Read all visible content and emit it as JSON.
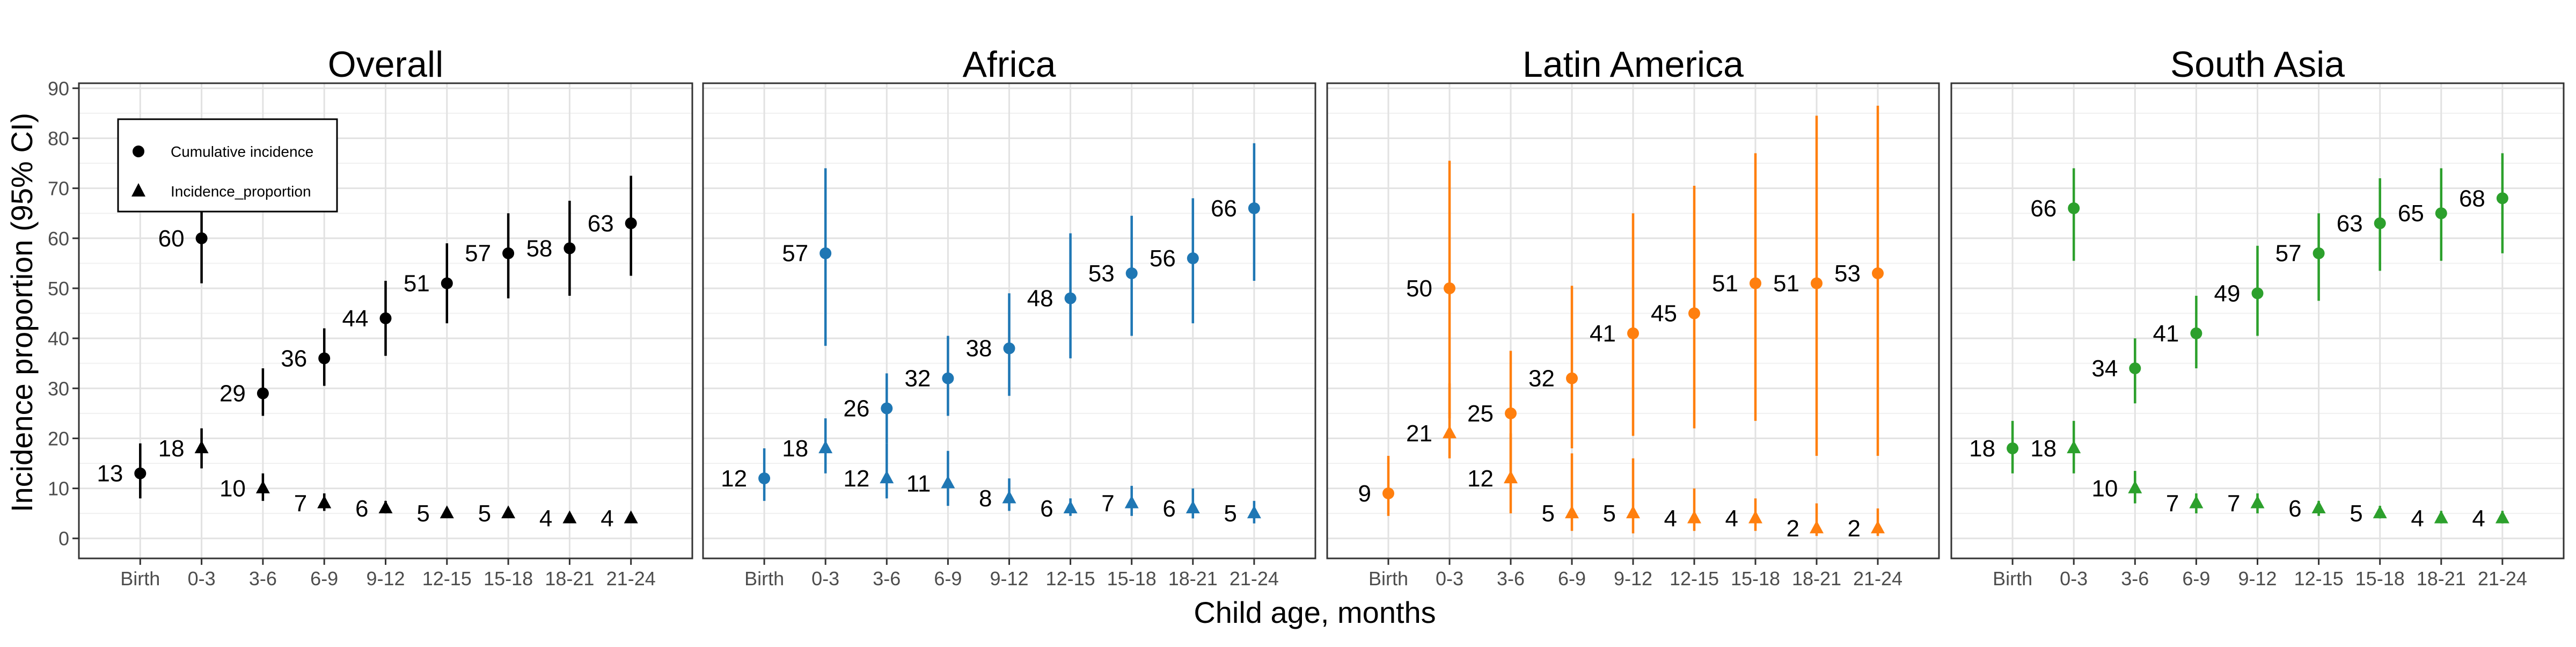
{
  "figure": {
    "ylabel": "Incidence proportion (95% CI)",
    "xlabel": "Child age, months",
    "legend": {
      "placement": "top-left",
      "entries": [
        {
          "label": "Cumulative incidence",
          "shape": "circle"
        },
        {
          "label": "Incidence_proportion",
          "shape": "triangle"
        }
      ]
    }
  },
  "chart_data": [
    {
      "type": "scatter",
      "title": "Overall",
      "color": "#000000",
      "categories": [
        "Birth",
        "0-3",
        "3-6",
        "6-9",
        "9-12",
        "12-15",
        "15-18",
        "18-21",
        "21-24"
      ],
      "ylim": [
        -4,
        91
      ],
      "yticks": [
        0,
        10,
        20,
        30,
        40,
        50,
        60,
        70,
        80,
        90
      ],
      "grid": true,
      "series": [
        {
          "name": "Cumulative incidence",
          "shape": "circle",
          "points": [
            {
              "x": "Birth",
              "y": 13,
              "lo": 8,
              "hi": 19,
              "label": "13"
            },
            {
              "x": "0-3",
              "y": 60,
              "lo": 51,
              "hi": 69,
              "label": "60"
            },
            {
              "x": "3-6",
              "y": 29,
              "lo": 24.5,
              "hi": 34,
              "label": "29"
            },
            {
              "x": "6-9",
              "y": 36,
              "lo": 30.5,
              "hi": 42,
              "label": "36"
            },
            {
              "x": "9-12",
              "y": 44,
              "lo": 36.5,
              "hi": 51.5,
              "label": "44"
            },
            {
              "x": "12-15",
              "y": 51,
              "lo": 43,
              "hi": 59,
              "label": "51"
            },
            {
              "x": "15-18",
              "y": 57,
              "lo": 48,
              "hi": 65,
              "label": "57"
            },
            {
              "x": "18-21",
              "y": 58,
              "lo": 48.5,
              "hi": 67.5,
              "label": "58"
            },
            {
              "x": "21-24",
              "y": 63,
              "lo": 52.5,
              "hi": 72.5,
              "label": "63"
            }
          ]
        },
        {
          "name": "Incidence_proportion",
          "shape": "triangle",
          "points": [
            {
              "x": "0-3",
              "y": 18,
              "lo": 14,
              "hi": 22,
              "label": "18"
            },
            {
              "x": "3-6",
              "y": 10,
              "lo": 7.5,
              "hi": 13,
              "label": "10"
            },
            {
              "x": "6-9",
              "y": 7,
              "lo": 5.5,
              "hi": 9,
              "label": "7"
            },
            {
              "x": "9-12",
              "y": 6,
              "lo": 5,
              "hi": 7.5,
              "label": "6"
            },
            {
              "x": "12-15",
              "y": 5,
              "lo": 4.5,
              "hi": 6,
              "label": "5"
            },
            {
              "x": "15-18",
              "y": 5,
              "lo": 4.5,
              "hi": 6,
              "label": "5"
            },
            {
              "x": "18-21",
              "y": 4,
              "lo": 3.5,
              "hi": 5,
              "label": "4"
            },
            {
              "x": "21-24",
              "y": 4,
              "lo": 3.5,
              "hi": 5,
              "label": "4"
            }
          ]
        }
      ]
    },
    {
      "type": "scatter",
      "title": "Africa",
      "color": "#1F77B4",
      "categories": [
        "Birth",
        "0-3",
        "3-6",
        "6-9",
        "9-12",
        "12-15",
        "15-18",
        "18-21",
        "21-24"
      ],
      "ylim": [
        -4,
        91
      ],
      "grid": true,
      "series": [
        {
          "name": "Cumulative incidence",
          "shape": "circle",
          "points": [
            {
              "x": "Birth",
              "y": 12,
              "lo": 7.5,
              "hi": 18,
              "label": "12"
            },
            {
              "x": "0-3",
              "y": 57,
              "lo": 38.5,
              "hi": 74,
              "label": "57"
            },
            {
              "x": "3-6",
              "y": 26,
              "lo": 19,
              "hi": 33,
              "label": "26"
            },
            {
              "x": "6-9",
              "y": 32,
              "lo": 24.5,
              "hi": 40.5,
              "label": "32"
            },
            {
              "x": "9-12",
              "y": 38,
              "lo": 28.5,
              "hi": 49,
              "label": "38"
            },
            {
              "x": "12-15",
              "y": 48,
              "lo": 36,
              "hi": 61,
              "label": "48"
            },
            {
              "x": "15-18",
              "y": 53,
              "lo": 40.5,
              "hi": 64.5,
              "label": "53"
            },
            {
              "x": "18-21",
              "y": 56,
              "lo": 43,
              "hi": 68,
              "label": "56"
            },
            {
              "x": "21-24",
              "y": 66,
              "lo": 51.5,
              "hi": 79,
              "label": "66"
            }
          ]
        },
        {
          "name": "Incidence_proportion",
          "shape": "triangle",
          "points": [
            {
              "x": "0-3",
              "y": 18,
              "lo": 13,
              "hi": 24,
              "label": "18"
            },
            {
              "x": "3-6",
              "y": 12,
              "lo": 8,
              "hi": 19,
              "label": "12"
            },
            {
              "x": "6-9",
              "y": 11,
              "lo": 6.5,
              "hi": 17.5,
              "label": "11"
            },
            {
              "x": "9-12",
              "y": 8,
              "lo": 5.5,
              "hi": 12,
              "label": "8"
            },
            {
              "x": "12-15",
              "y": 6,
              "lo": 4.5,
              "hi": 8,
              "label": "6"
            },
            {
              "x": "15-18",
              "y": 7,
              "lo": 4.5,
              "hi": 10.5,
              "label": "7"
            },
            {
              "x": "18-21",
              "y": 6,
              "lo": 4,
              "hi": 10,
              "label": "6"
            },
            {
              "x": "21-24",
              "y": 5,
              "lo": 3,
              "hi": 7.5,
              "label": "5"
            }
          ]
        }
      ]
    },
    {
      "type": "scatter",
      "title": "Latin America",
      "color": "#FF7F0E",
      "categories": [
        "Birth",
        "0-3",
        "3-6",
        "6-9",
        "9-12",
        "12-15",
        "15-18",
        "18-21",
        "21-24"
      ],
      "ylim": [
        -4,
        91
      ],
      "grid": true,
      "series": [
        {
          "name": "Cumulative incidence",
          "shape": "circle",
          "points": [
            {
              "x": "Birth",
              "y": 9,
              "lo": 4.5,
              "hi": 16.5,
              "label": "9"
            },
            {
              "x": "0-3",
              "y": 50,
              "lo": 24,
              "hi": 75.5,
              "label": "50"
            },
            {
              "x": "3-6",
              "y": 25,
              "lo": 12.5,
              "hi": 37.5,
              "label": "25"
            },
            {
              "x": "6-9",
              "y": 32,
              "lo": 18,
              "hi": 50.5,
              "label": "32"
            },
            {
              "x": "9-12",
              "y": 41,
              "lo": 20.5,
              "hi": 65,
              "label": "41"
            },
            {
              "x": "12-15",
              "y": 45,
              "lo": 22,
              "hi": 70.5,
              "label": "45"
            },
            {
              "x": "15-18",
              "y": 51,
              "lo": 23.5,
              "hi": 77,
              "label": "51"
            },
            {
              "x": "18-21",
              "y": 51,
              "lo": 16.5,
              "hi": 84.5,
              "label": "51"
            },
            {
              "x": "21-24",
              "y": 53,
              "lo": 16.5,
              "hi": 86.5,
              "label": "53"
            }
          ]
        },
        {
          "name": "Incidence_proportion",
          "shape": "triangle",
          "points": [
            {
              "x": "0-3",
              "y": 21,
              "lo": 16,
              "hi": 31,
              "label": "21"
            },
            {
              "x": "3-6",
              "y": 12,
              "lo": 5,
              "hi": 21,
              "label": "12"
            },
            {
              "x": "6-9",
              "y": 5,
              "lo": 1.5,
              "hi": 17,
              "label": "5"
            },
            {
              "x": "9-12",
              "y": 5,
              "lo": 1,
              "hi": 16,
              "label": "5"
            },
            {
              "x": "12-15",
              "y": 4,
              "lo": 1.5,
              "hi": 10,
              "label": "4"
            },
            {
              "x": "15-18",
              "y": 4,
              "lo": 1.5,
              "hi": 8,
              "label": "4"
            },
            {
              "x": "18-21",
              "y": 2,
              "lo": 0.5,
              "hi": 7,
              "label": "2"
            },
            {
              "x": "21-24",
              "y": 2,
              "lo": 0.5,
              "hi": 6,
              "label": "2"
            }
          ]
        }
      ]
    },
    {
      "type": "scatter",
      "title": "South Asia",
      "color": "#2CA02C",
      "categories": [
        "Birth",
        "0-3",
        "3-6",
        "6-9",
        "9-12",
        "12-15",
        "15-18",
        "18-21",
        "21-24"
      ],
      "ylim": [
        -4,
        91
      ],
      "grid": true,
      "series": [
        {
          "name": "Cumulative incidence",
          "shape": "circle",
          "points": [
            {
              "x": "Birth",
              "y": 18,
              "lo": 13,
              "hi": 23.5,
              "label": "18"
            },
            {
              "x": "0-3",
              "y": 66,
              "lo": 55.5,
              "hi": 74,
              "label": "66"
            },
            {
              "x": "3-6",
              "y": 34,
              "lo": 27,
              "hi": 40,
              "label": "34"
            },
            {
              "x": "6-9",
              "y": 41,
              "lo": 34,
              "hi": 48.5,
              "label": "41"
            },
            {
              "x": "9-12",
              "y": 49,
              "lo": 40.5,
              "hi": 58.5,
              "label": "49"
            },
            {
              "x": "12-15",
              "y": 57,
              "lo": 47.5,
              "hi": 65,
              "label": "57"
            },
            {
              "x": "15-18",
              "y": 63,
              "lo": 53.5,
              "hi": 72,
              "label": "63"
            },
            {
              "x": "18-21",
              "y": 65,
              "lo": 55.5,
              "hi": 74,
              "label": "65"
            },
            {
              "x": "21-24",
              "y": 68,
              "lo": 57,
              "hi": 77,
              "label": "68"
            }
          ]
        },
        {
          "name": "Incidence_proportion",
          "shape": "triangle",
          "points": [
            {
              "x": "0-3",
              "y": 18,
              "lo": 13,
              "hi": 23.5,
              "label": "18"
            },
            {
              "x": "3-6",
              "y": 10,
              "lo": 7,
              "hi": 13.5,
              "label": "10"
            },
            {
              "x": "6-9",
              "y": 7,
              "lo": 5,
              "hi": 9,
              "label": "7"
            },
            {
              "x": "9-12",
              "y": 7,
              "lo": 5,
              "hi": 9,
              "label": "7"
            },
            {
              "x": "12-15",
              "y": 6,
              "lo": 4.5,
              "hi": 7.5,
              "label": "6"
            },
            {
              "x": "15-18",
              "y": 5,
              "lo": 4,
              "hi": 6.5,
              "label": "5"
            },
            {
              "x": "18-21",
              "y": 4,
              "lo": 3,
              "hi": 5.5,
              "label": "4"
            },
            {
              "x": "21-24",
              "y": 4,
              "lo": 3,
              "hi": 5.5,
              "label": "4"
            }
          ]
        }
      ]
    }
  ]
}
